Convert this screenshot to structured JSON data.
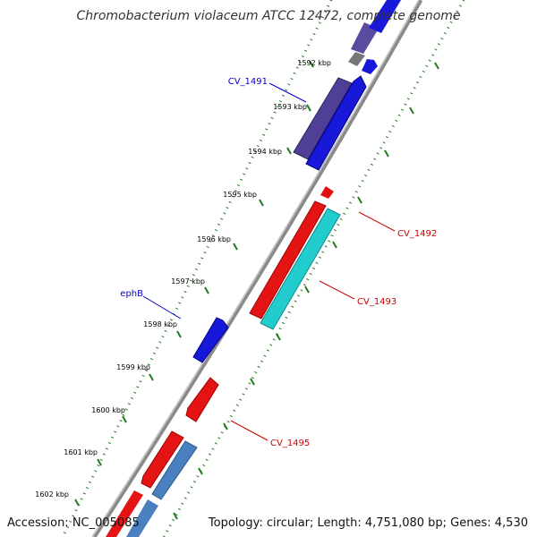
{
  "title": "Chromobacterium violaceum ATCC 12472, complete genome",
  "accession": "Accession: NC_005085",
  "topology": "Topology: circular; Length: 4,751,080 bp; Genes: 4,530",
  "colors": {
    "backbone": "#8a8a8a",
    "tick": "#1f7a1f",
    "label_blue": "#0000cc",
    "label_red": "#cc0000"
  },
  "ticks": [
    {
      "label": "1592 kbp"
    },
    {
      "label": "1593 kbp"
    },
    {
      "label": "1594 kbp"
    },
    {
      "label": "1595 kbp"
    },
    {
      "label": "1596 kbp"
    },
    {
      "label": "1597 kbp"
    },
    {
      "label": "1598 kbp"
    },
    {
      "label": "1599 kbp"
    },
    {
      "label": "1600 kbp"
    },
    {
      "label": "1601 kbp"
    },
    {
      "label": "1602 kbp"
    }
  ],
  "gene_labels": [
    {
      "name": "CV_1491",
      "color": "#0000cc"
    },
    {
      "name": "CV_1492",
      "color": "#cc0000"
    },
    {
      "name": "CV_1493",
      "color": "#cc0000"
    },
    {
      "name": "ephB",
      "color": "#0000cc"
    },
    {
      "name": "CV_1495",
      "color": "#cc0000"
    }
  ]
}
